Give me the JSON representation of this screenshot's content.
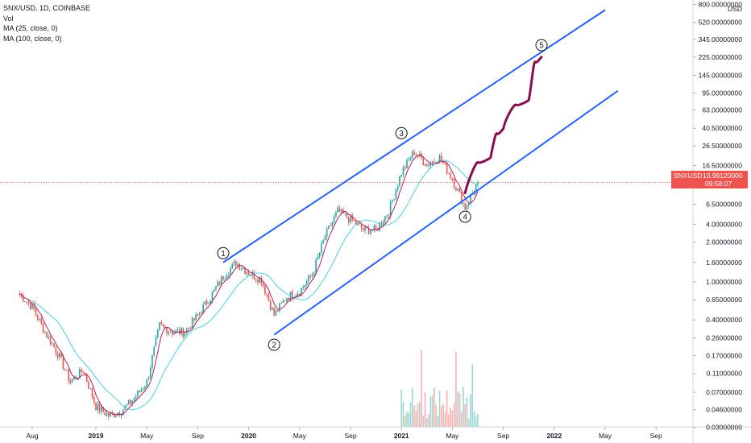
{
  "legend": {
    "title": "SNX/USD, 1D, COINBASE",
    "vol": "Vol",
    "ma1": "MA (25, close, 0)",
    "ma2": "MA (100, close, 0)"
  },
  "price_tag": {
    "symbol": "SNXUSD",
    "price": "10.99120000",
    "countdown": "09:58:07",
    "color": "#ef5350"
  },
  "colors": {
    "up": "#26a69a",
    "down": "#ef5350",
    "ma25": "#b71c5c",
    "ma100": "#4dd0e1",
    "channel": "#2962ff",
    "projection": "#880e4f"
  },
  "chart_data": {
    "type": "line",
    "title": "SNX/USD, 1D, COINBASE",
    "y_scale": "log",
    "y_unit": "USD",
    "y_ticks": [
      "800.00000000",
      "520.00000000",
      "345.00000000",
      "225.00000000",
      "145.00000000",
      "95.00000000",
      "63.00000000",
      "40.50000000",
      "26.50000000",
      "16.50000000",
      "10.99120000",
      "6.50000000",
      "4.00000000",
      "2.60000000",
      "1.60000000",
      "1.00000000",
      "0.65000000",
      "0.40000000",
      "0.26000000",
      "0.17000000",
      "0.11000000",
      "0.07000000",
      "0.04600000",
      "0.03000000"
    ],
    "x_ticks": [
      "Aug",
      "2019",
      "May",
      "Sep",
      "2020",
      "May",
      "Sep",
      "2021",
      "May",
      "Sep",
      "2022",
      "May",
      "Sep"
    ],
    "series": [
      {
        "name": "SNX/USD",
        "dates": [
          "2018-07",
          "2018-08",
          "2018-09",
          "2018-10",
          "2018-11",
          "2018-12",
          "2019-01",
          "2019-02",
          "2019-03",
          "2019-04",
          "2019-05",
          "2019-06",
          "2019-07",
          "2019-08",
          "2019-09",
          "2019-10",
          "2019-11",
          "2019-12",
          "2020-01",
          "2020-02",
          "2020-03",
          "2020-04",
          "2020-05",
          "2020-06",
          "2020-07",
          "2020-08",
          "2020-09",
          "2020-10",
          "2020-11",
          "2020-12",
          "2021-01",
          "2021-02",
          "2021-03",
          "2021-04",
          "2021-05",
          "2021-06",
          "2021-07"
        ],
        "values": [
          0.75,
          0.55,
          0.3,
          0.18,
          0.09,
          0.12,
          0.05,
          0.04,
          0.045,
          0.06,
          0.09,
          0.35,
          0.3,
          0.3,
          0.45,
          0.7,
          1.15,
          1.6,
          1.25,
          1.05,
          0.45,
          0.7,
          0.8,
          1.2,
          3.0,
          5.5,
          4.5,
          3.5,
          3.5,
          5.5,
          14.0,
          23.0,
          17.0,
          20.0,
          12.0,
          6.0,
          10.99
        ]
      },
      {
        "name": "MA (25, close, 0)"
      },
      {
        "name": "MA (100, close, 0)"
      },
      {
        "name": "Vol"
      }
    ],
    "annotations": [
      {
        "label": "1",
        "date": "2019-11",
        "value": 2.0
      },
      {
        "label": "2",
        "date": "2020-03",
        "value": 0.22
      },
      {
        "label": "3",
        "date": "2021-01",
        "value": 36
      },
      {
        "label": "4",
        "date": "2021-06",
        "value": 4.8
      },
      {
        "label": "5",
        "date": "2021-12",
        "value": 300
      }
    ],
    "channel": {
      "upper": [
        {
          "date": "2019-11",
          "value": 1.6
        },
        {
          "date": "2022-05",
          "value": 700
        }
      ],
      "lower": [
        {
          "date": "2020-03",
          "value": 0.28
        },
        {
          "date": "2022-06",
          "value": 100
        }
      ]
    },
    "projection": [
      {
        "date": "2021-06",
        "value": 8.5
      },
      {
        "date": "2021-08",
        "value": 20
      },
      {
        "date": "2021-09",
        "value": 40
      },
      {
        "date": "2021-11",
        "value": 80
      },
      {
        "date": "2021-12",
        "value": 225
      }
    ]
  }
}
